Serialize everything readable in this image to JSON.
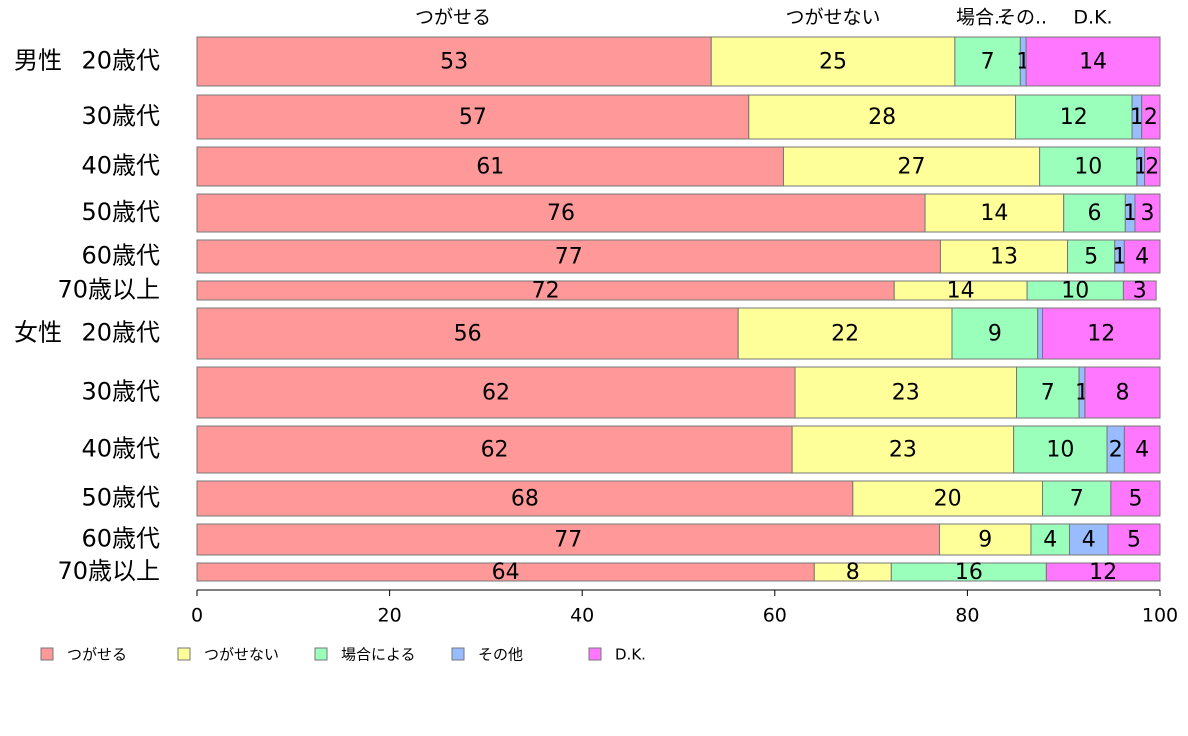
{
  "chart_data": {
    "type": "bar",
    "orientation": "horizontal",
    "stacked": true,
    "xlim": [
      0,
      100
    ],
    "xticks": [
      0,
      20,
      40,
      60,
      80,
      100
    ],
    "grid": false,
    "legend_position": "bottom",
    "header_labels": [
      "つがせる",
      "つがせない",
      "場合..",
      "その..",
      "D.K."
    ],
    "groups": [
      {
        "label": "男性",
        "first_row": 0
      },
      {
        "label": "女性",
        "first_row": 6
      }
    ],
    "categories": [
      "20歳代",
      "30歳代",
      "40歳代",
      "50歳代",
      "60歳代",
      "70歳以上",
      "20歳代",
      "30歳代",
      "40歳代",
      "50歳代",
      "60歳代",
      "70歳以上"
    ],
    "series": [
      {
        "name": "つがせる",
        "color": "#ff9999",
        "values": [
          53.4,
          57.3,
          60.9,
          75.6,
          77.2,
          72.4,
          56.2,
          62.1,
          61.8,
          68.1,
          77.1,
          64.1
        ]
      },
      {
        "name": "つがせない",
        "color": "#ffff99",
        "values": [
          25.3,
          27.7,
          26.6,
          14.4,
          13.2,
          13.8,
          22.2,
          23.0,
          23.0,
          19.7,
          9.5,
          8.0
        ]
      },
      {
        "name": "場合による",
        "color": "#99ffbb",
        "values": [
          6.8,
          12.1,
          10.1,
          6.4,
          4.9,
          10.0,
          8.9,
          6.5,
          9.7,
          7.1,
          4.0,
          16.1
        ]
      },
      {
        "name": "その他",
        "color": "#99bbff",
        "values": [
          0.6,
          1.0,
          0.8,
          1.0,
          1.0,
          0.0,
          0.5,
          0.6,
          1.8,
          0.0,
          4.0,
          0.0
        ]
      },
      {
        "name": "D.K.",
        "color": "#ff77ff",
        "values": [
          13.9,
          1.9,
          1.6,
          2.6,
          3.7,
          3.4,
          12.2,
          7.8,
          3.7,
          5.1,
          5.4,
          11.8
        ]
      }
    ],
    "data_labels": [
      [
        "53",
        "25",
        "7",
        "1",
        "14"
      ],
      [
        "57",
        "28",
        "12",
        "1",
        "2"
      ],
      [
        "61",
        "27",
        "10",
        "1",
        "2"
      ],
      [
        "76",
        "14",
        "6",
        "1",
        "3"
      ],
      [
        "77",
        "13",
        "5",
        "1",
        "4"
      ],
      [
        "72",
        "14",
        "10",
        "",
        "3"
      ],
      [
        "56",
        "22",
        "9",
        "",
        "12"
      ],
      [
        "62",
        "23",
        "7",
        "1",
        "8"
      ],
      [
        "62",
        "23",
        "10",
        "2",
        "4"
      ],
      [
        "68",
        "20",
        "7",
        "",
        "5"
      ],
      [
        "77",
        "9",
        "4",
        "4",
        "5"
      ],
      [
        "64",
        "8",
        "16",
        "",
        "12"
      ]
    ]
  }
}
